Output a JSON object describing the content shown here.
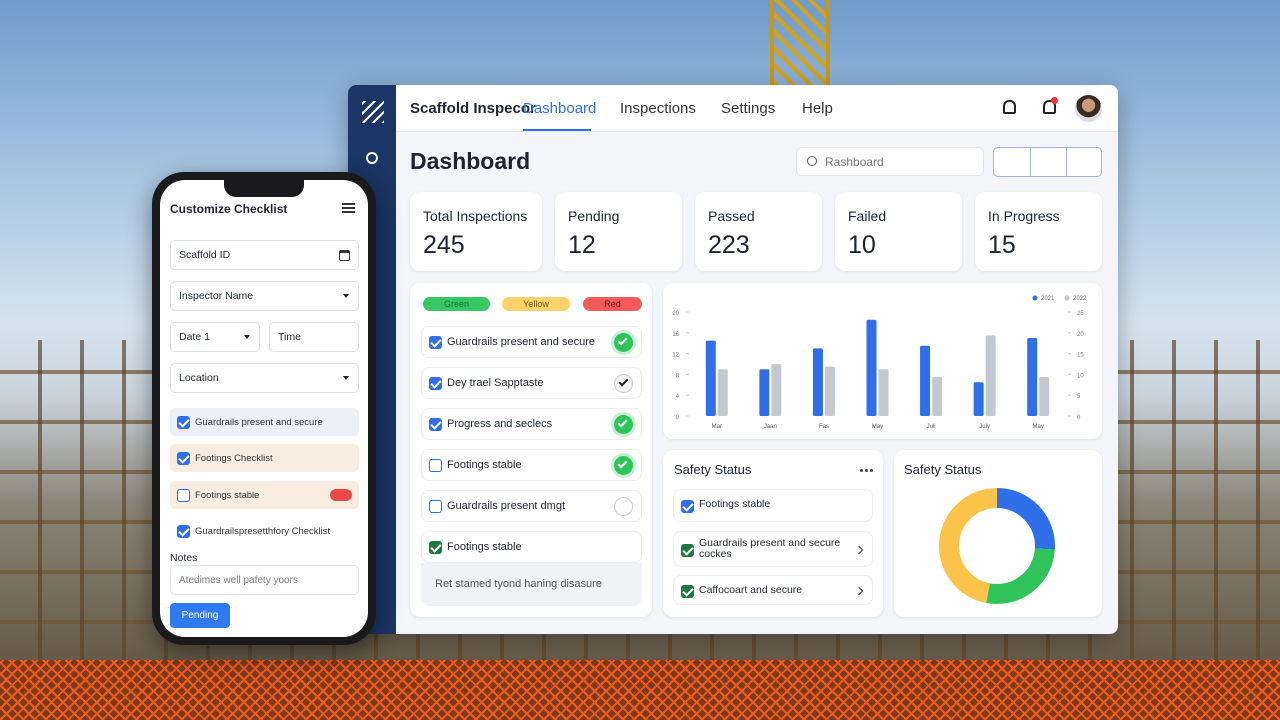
{
  "nav": {
    "brand": "Scaffold Inspecor",
    "links": [
      "Dashboard",
      "Inspections",
      "Settings",
      "Help"
    ]
  },
  "page_title": "Dashboard",
  "search": "Rashboard",
  "stats": [
    {
      "label": "Total Inspections",
      "value": 245
    },
    {
      "label": "Pending",
      "value": 12
    },
    {
      "label": "Passed",
      "value": 223
    },
    {
      "label": "Failed",
      "value": 10
    },
    {
      "label": "In Progress",
      "value": 15
    }
  ],
  "checklist": {
    "legend": [
      "Green",
      "Yellow",
      "Red"
    ],
    "items": [
      {
        "label": "Guardrails present and secure",
        "checked": true,
        "status": "green"
      },
      {
        "label": "Dey trael Sapptaste",
        "checked": true,
        "status": "check"
      },
      {
        "label": "Progress and seclecs",
        "checked": true,
        "status": "green"
      },
      {
        "label": "Footings stable",
        "checked": false,
        "status": "green"
      },
      {
        "label": "Guardrails present dmgt",
        "checked": false,
        "status": "empty"
      },
      {
        "label": "Footings stable",
        "checked": true,
        "status": "none"
      }
    ],
    "footer": "Ret stamed tyond haning disasure"
  },
  "chart_data": [
    {
      "type": "bar",
      "categories": [
        "Mar",
        "Jaan",
        "Fas",
        "May",
        "Juli",
        "July",
        "May"
      ],
      "series": [
        {
          "name": "2021",
          "color": "#2f6fea",
          "values": [
            14.5,
            9,
            13,
            18.5,
            13.5,
            6.5,
            15
          ]
        },
        {
          "name": "2022",
          "color": "#c5c8ce",
          "values": [
            9,
            10,
            9.5,
            9,
            7.5,
            15.5,
            7.5
          ]
        }
      ],
      "ylim": [
        0,
        20
      ],
      "yticks": [
        0,
        4,
        8,
        12,
        16,
        20
      ],
      "y2lim": [
        0,
        25
      ],
      "y2ticks": [
        0,
        5,
        10,
        15,
        20,
        25
      ],
      "legend": "top-right",
      "grid": false
    },
    {
      "type": "pie",
      "donut": true,
      "title": "Safety Status",
      "categories": [
        null,
        null,
        null
      ],
      "values": [
        26,
        27,
        47
      ],
      "colors": [
        "#2f6fea",
        "#2ec45a",
        "#fcc34a"
      ]
    }
  ],
  "safety_status": {
    "title": "Safety Status",
    "items": [
      {
        "label": "Footings stable",
        "checked": true,
        "color": "#2f6fea",
        "arrow": false
      },
      {
        "label": "Guardrails present and secure cockes",
        "checked": true,
        "color": "#1e7a3c",
        "arrow": true
      },
      {
        "label": "Caffocoart and secure",
        "checked": true,
        "color": "#1e7a3c",
        "arrow": true
      }
    ]
  },
  "phone": {
    "title": "Customize Checklist",
    "fields": [
      {
        "label": "Scaffold ID",
        "icon": "calendar"
      },
      {
        "label": "Inspector Name",
        "icon": "caret"
      },
      {
        "label": "Date 1",
        "icon": "caret"
      },
      {
        "label": "Time",
        "icon": "none"
      },
      {
        "label": "Location",
        "icon": "caret"
      }
    ],
    "checks": [
      {
        "label": "Guardrails present and secure",
        "checked": true,
        "bg": "#eceff3",
        "badge": false
      },
      {
        "label": "Footings Checklist",
        "checked": true,
        "bg": "#f8ece1",
        "badge": false
      },
      {
        "label": "Footings stable",
        "checked": false,
        "bg": "#f8ece1",
        "badge": true
      },
      {
        "label": "Guardrailspresetthfory Checklist",
        "checked": true,
        "bg": "#ffffff",
        "badge": false
      }
    ],
    "notes_label": "Notes",
    "notes_placeholder": "Atedimes well pafety yoors",
    "button": "Pending"
  }
}
